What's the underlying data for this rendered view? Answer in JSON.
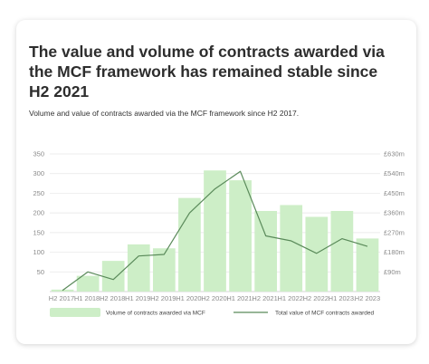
{
  "page": {
    "title": "The value and volume of contracts awarded via the MCF framework has remained stable since H2 2021",
    "subtitle": "Volume and value of contracts awarded via the MCF framework since H2 2017."
  },
  "colors": {
    "bar": "#cdeec7",
    "line": "#5a8a5a",
    "grid": "#e6e6e6",
    "axis_text": "#8a8a8a"
  },
  "chart_data": {
    "type": "bar",
    "title": "The value and volume of contracts awarded via the MCF framework has remained stable since H2 2021",
    "subtitle": "Volume and value of contracts awarded via the MCF framework since H2 2017.",
    "categories": [
      "H2 2017.",
      "H1 2018.",
      "H2 2018.",
      "H1 2019.",
      "H2 2019.",
      "H1 2020.",
      "H2 2020.",
      "H1 2021.",
      "H2 2021.",
      "H1 2022.",
      "H2 2022.",
      "H1 2023.",
      "H2 2023"
    ],
    "series": [
      {
        "name": "Volume of contracts awarded via MCF",
        "type": "bar",
        "axis": "left",
        "values": [
          5,
          40,
          78,
          120,
          110,
          238,
          308,
          283,
          205,
          220,
          190,
          205,
          135
        ]
      },
      {
        "name": "Total value of MCF contracts awarded",
        "type": "line",
        "axis": "right",
        "values": [
          5,
          90,
          55,
          163,
          170,
          360,
          470,
          550,
          255,
          232,
          175,
          242,
          207
        ]
      }
    ],
    "ylim_left": [
      0,
      350
    ],
    "yticks_left": [
      0,
      50,
      100,
      150,
      200,
      250,
      300,
      350
    ],
    "ytick_labels_left": [
      "",
      "50",
      "100",
      "150",
      "200",
      "250",
      "300",
      "350"
    ],
    "ylim_right": [
      0,
      630
    ],
    "yticks_right": [
      90,
      180,
      270,
      360,
      450,
      540,
      630
    ],
    "ytick_labels_right": [
      "£90m",
      "£180m",
      "£270m",
      "£360m",
      "£450m",
      "£540m",
      "£630m"
    ],
    "grid": true,
    "legend_position": "bottom"
  }
}
